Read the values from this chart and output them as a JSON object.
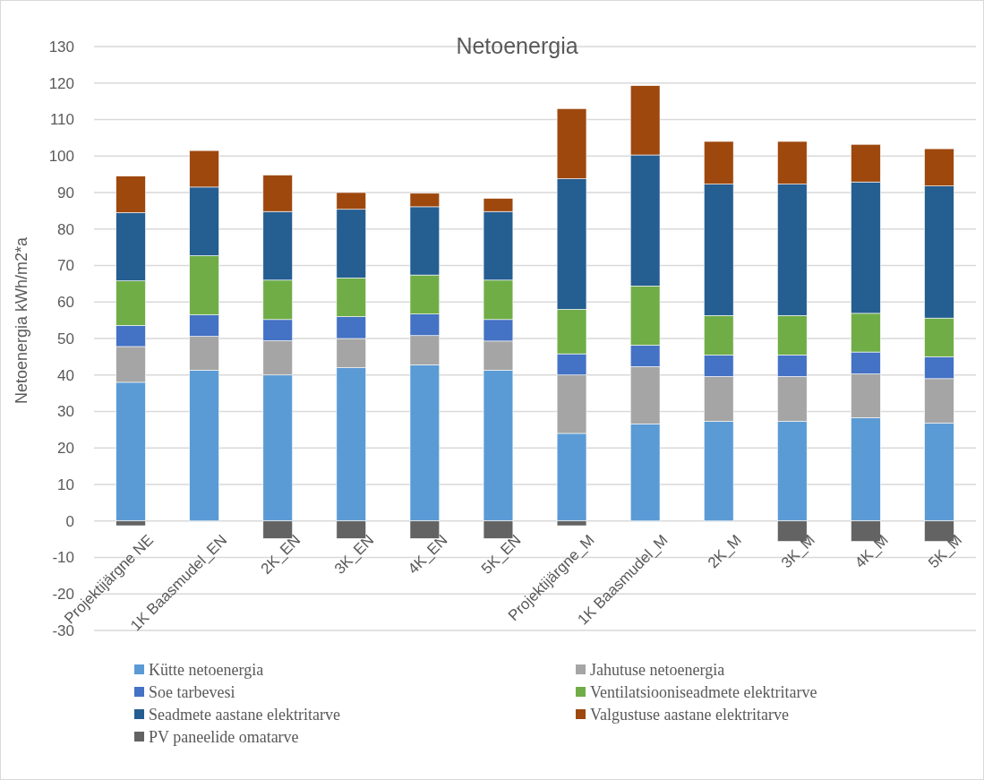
{
  "chart_data": {
    "type": "bar",
    "stacked": true,
    "title": "Netoenergia",
    "ylabel": "Netoenergia kWh/m2*a",
    "categories": [
      "Projektijärgne NE",
      "1K Baasmudel_EN",
      "2K_EN",
      "3K_EN",
      "4K_EN",
      "5K_EN",
      "Projektijärgne_M",
      "1K Baasmudel_M",
      "2K_M",
      "3K_M",
      "4K_M",
      "5K_M"
    ],
    "series": [
      {
        "name": "Kütte netoenergia",
        "color": "#5b9bd5",
        "values": [
          38,
          41.3,
          40,
          42,
          42.8,
          41.3,
          24,
          26.6,
          27.3,
          27.3,
          28.3,
          26.8
        ]
      },
      {
        "name": "Jahutuse netoenergia",
        "color": "#a5a5a5",
        "values": [
          9.8,
          9.3,
          9.4,
          8,
          8,
          8,
          16,
          15.7,
          12.3,
          12.3,
          12,
          12.2
        ]
      },
      {
        "name": "Soe tarbevesi",
        "color": "#4472c4",
        "values": [
          5.8,
          5.9,
          5.8,
          6,
          5.9,
          5.9,
          5.8,
          5.9,
          5.9,
          5.9,
          6,
          6
        ]
      },
      {
        "name": "Ventilatsiooniseadmete elektritarve",
        "color": "#70ad47",
        "values": [
          12.2,
          16.2,
          10.8,
          10.6,
          10.7,
          10.8,
          12.2,
          16.2,
          10.8,
          10.8,
          10.6,
          10.6
        ]
      },
      {
        "name": "Seadmete aastane elektritarve",
        "color": "#255e91",
        "values": [
          18.7,
          18.8,
          18.8,
          18.8,
          18.7,
          18.8,
          35.8,
          35.9,
          36,
          36,
          36,
          36.2
        ]
      },
      {
        "name": "Valgustuse aastane elektritarve",
        "color": "#9e480e",
        "values": [
          10,
          10,
          10,
          4.6,
          3.7,
          3.6,
          19.2,
          19,
          11.7,
          11.7,
          10.3,
          10.2
        ]
      },
      {
        "name": "PV paneelide omatarve",
        "color": "#636363",
        "values": [
          -1.3,
          null,
          -4.8,
          -4.8,
          -4.8,
          -4.8,
          -1.3,
          null,
          null,
          -5.6,
          -5.6,
          -5.6
        ]
      }
    ],
    "ylim": [
      -30,
      130
    ],
    "yticks": [
      -30,
      -20,
      -10,
      0,
      10,
      20,
      30,
      40,
      50,
      60,
      70,
      80,
      90,
      100,
      110,
      120,
      130
    ],
    "grid": "y",
    "legend": "bottom"
  }
}
